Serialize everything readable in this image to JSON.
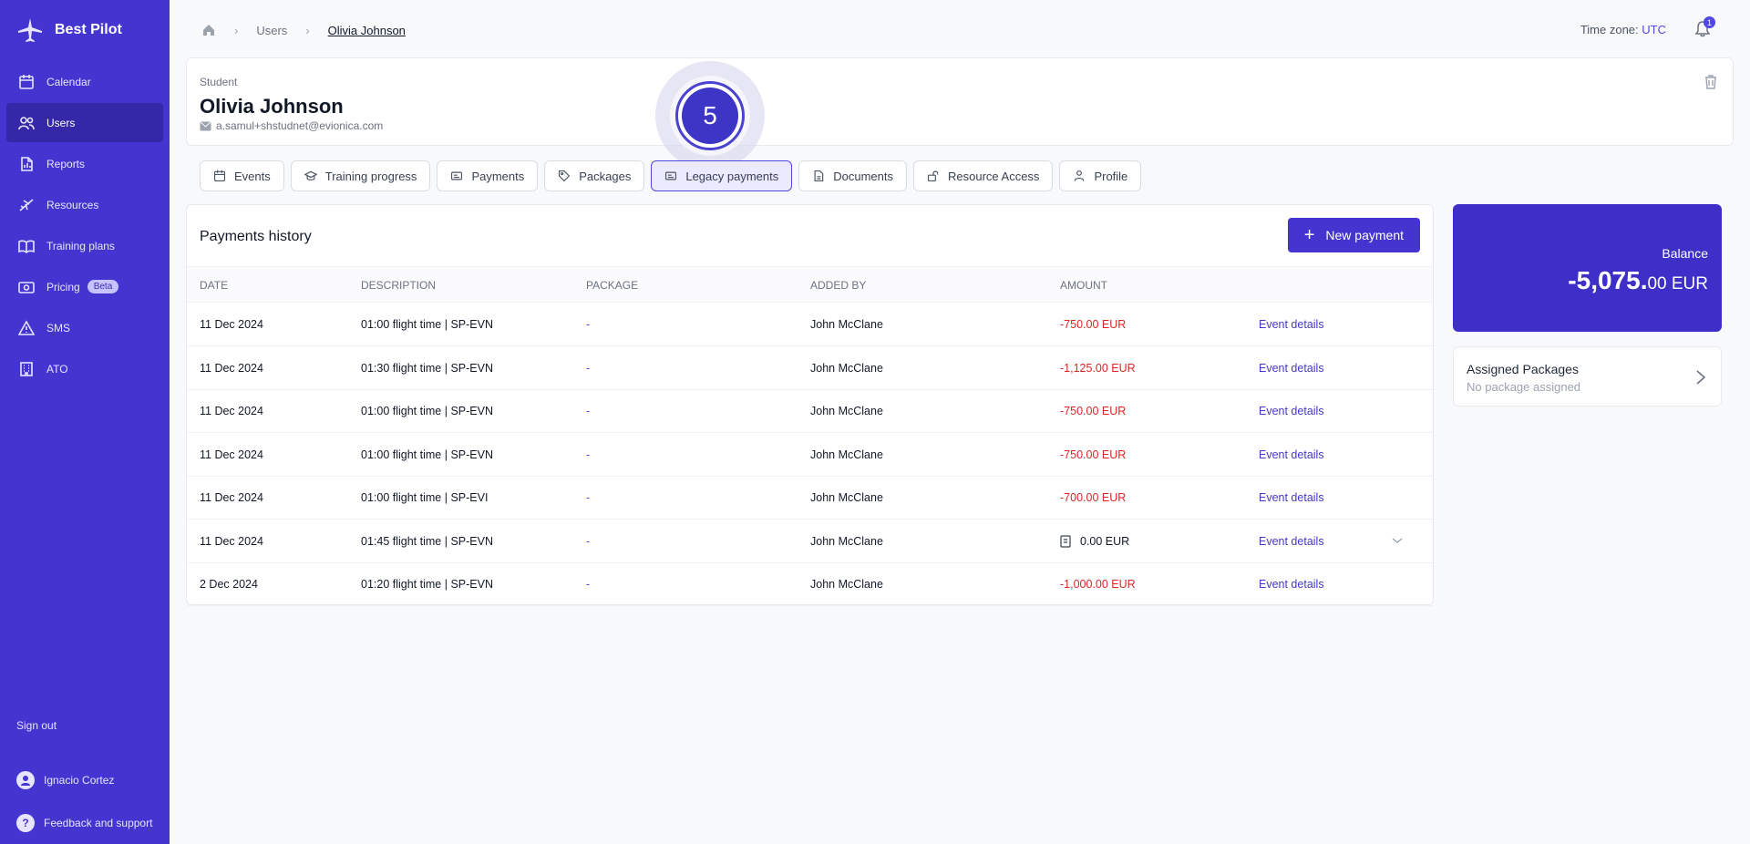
{
  "app": {
    "name": "Best Pilot"
  },
  "sidebar": {
    "items": [
      {
        "label": "Calendar",
        "icon": "calendar-icon"
      },
      {
        "label": "Users",
        "icon": "users-icon",
        "active": true
      },
      {
        "label": "Reports",
        "icon": "report-icon"
      },
      {
        "label": "Resources",
        "icon": "plane-icon"
      },
      {
        "label": "Training plans",
        "icon": "book-icon"
      },
      {
        "label": "Pricing",
        "icon": "pricing-icon",
        "badge": "Beta"
      },
      {
        "label": "SMS",
        "icon": "warning-icon"
      },
      {
        "label": "ATO",
        "icon": "building-icon"
      }
    ],
    "sign_out": "Sign out",
    "user": "Ignacio Cortez",
    "feedback": "Feedback and support"
  },
  "header": {
    "breadcrumb": [
      "Users",
      "Olivia Johnson"
    ],
    "timezone_label": "Time zone:",
    "timezone_value": "UTC",
    "notification_count": "1"
  },
  "student": {
    "role": "Student",
    "name": "Olivia Johnson",
    "email": "a.samul+shstudnet@evionica.com"
  },
  "step_badge": "5",
  "tabs": [
    {
      "label": "Events",
      "icon": "calendar-icon"
    },
    {
      "label": "Training progress",
      "icon": "graduation-icon"
    },
    {
      "label": "Payments",
      "icon": "wallet-icon"
    },
    {
      "label": "Packages",
      "icon": "tag-icon"
    },
    {
      "label": "Legacy payments",
      "icon": "wallet-icon",
      "active": true
    },
    {
      "label": "Documents",
      "icon": "document-icon"
    },
    {
      "label": "Resource Access",
      "icon": "unlock-icon"
    },
    {
      "label": "Profile",
      "icon": "person-icon"
    }
  ],
  "payments": {
    "title": "Payments history",
    "new_button": "New payment",
    "columns": [
      "DATE",
      "DESCRIPTION",
      "PACKAGE",
      "ADDED BY",
      "AMOUNT"
    ],
    "rows": [
      {
        "date": "11 Dec 2024",
        "description": "01:00 flight time | SP-EVN",
        "package": "-",
        "added_by": "John McClane",
        "amount": "-750.00 EUR",
        "link": "Event details",
        "negative": true
      },
      {
        "date": "11 Dec 2024",
        "description": "01:30 flight time | SP-EVN",
        "package": "-",
        "added_by": "John McClane",
        "amount": "-1,125.00 EUR",
        "link": "Event details",
        "negative": true
      },
      {
        "date": "11 Dec 2024",
        "description": "01:00 flight time | SP-EVN",
        "package": "-",
        "added_by": "John McClane",
        "amount": "-750.00 EUR",
        "link": "Event details",
        "negative": true
      },
      {
        "date": "11 Dec 2024",
        "description": "01:00 flight time | SP-EVN",
        "package": "-",
        "added_by": "John McClane",
        "amount": "-750.00 EUR",
        "link": "Event details",
        "negative": true
      },
      {
        "date": "11 Dec 2024",
        "description": "01:00 flight time | SP-EVI",
        "package": "-",
        "added_by": "John McClane",
        "amount": "-700.00 EUR",
        "link": "Event details",
        "negative": true
      },
      {
        "date": "11 Dec 2024",
        "description": "01:45 flight time | SP-EVN",
        "package": "-",
        "added_by": "John McClane",
        "amount": "0.00 EUR",
        "link": "Event details",
        "negative": false,
        "has_invoice_icon": true,
        "has_chevron": true
      },
      {
        "date": "2 Dec 2024",
        "description": "01:20 flight time | SP-EVN",
        "package": "-",
        "added_by": "John McClane",
        "amount": "-1,000.00 EUR",
        "link": "Event details",
        "negative": true
      }
    ]
  },
  "balance": {
    "label": "Balance",
    "value_main": "-5,075.",
    "value_decimal": "00 EUR"
  },
  "assigned_packages": {
    "title": "Assigned Packages",
    "subtitle": "No package assigned"
  },
  "colors": {
    "sidebar": "#4435d1",
    "accent": "#4f46e5",
    "negative": "#dc2626",
    "balance_card": "#3d2fc8"
  }
}
